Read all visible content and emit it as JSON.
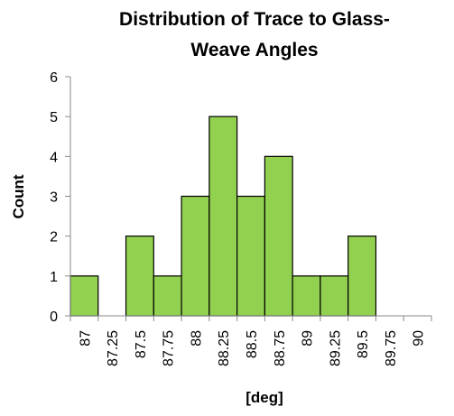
{
  "chart_data": {
    "type": "bar",
    "title": [
      "Distribution of Trace to Glass-",
      "Weave Angles"
    ],
    "x_label": "[deg]",
    "y_label": "Count",
    "categories": [
      "87",
      "87.25",
      "87.5",
      "87.75",
      "88",
      "88.25",
      "88.5",
      "88.75",
      "89",
      "89.25",
      "89.5",
      "89.75",
      "90"
    ],
    "values": [
      1,
      0,
      2,
      1,
      3,
      5,
      3,
      4,
      1,
      1,
      2,
      0,
      0
    ],
    "color": "#92d050",
    "ylim": [
      0,
      6
    ],
    "yticks": [
      0,
      1,
      2,
      3,
      4,
      5,
      6
    ],
    "grid": false
  }
}
